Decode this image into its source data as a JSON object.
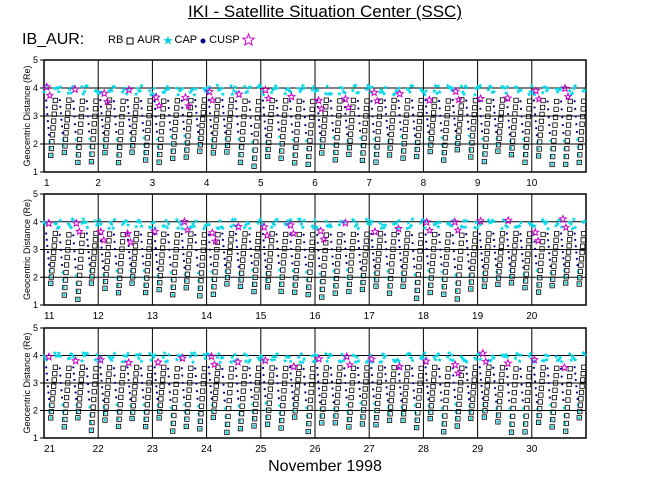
{
  "header": {
    "title": "IKI - Satellite Situation Center (SSC)",
    "satellite": "IB_AUR:",
    "legend": [
      {
        "label": "RB",
        "symbol": "square-icon",
        "color": "#000000"
      },
      {
        "label": "AUR",
        "symbol": "star-icon",
        "color": "#00d0e0"
      },
      {
        "label": "CAP",
        "symbol": "dot-icon",
        "color": "#00008b"
      },
      {
        "label": "CUSP",
        "symbol": "open-star-icon",
        "color": "#cc00cc"
      }
    ]
  },
  "footer": {
    "month_label": "November    1998"
  },
  "chart_data": [
    {
      "type": "scatter",
      "ylabel": "Geocentric Distance  (Re)",
      "ylim": [
        1,
        5
      ],
      "yticks": [
        "1",
        "2",
        "3",
        "4",
        "5"
      ],
      "xticks": [
        "1",
        "2",
        "3",
        "4",
        "5",
        "6",
        "7",
        "8",
        "9",
        "10"
      ],
      "x_unit": "day",
      "orbits_per_day": 4,
      "x_range": [
        1,
        11
      ],
      "series": [
        "RB",
        "AUR",
        "CAP",
        "CUSP"
      ]
    },
    {
      "type": "scatter",
      "ylabel": "Geocentric Distance  (Re)",
      "ylim": [
        1,
        5
      ],
      "yticks": [
        "1",
        "2",
        "3",
        "4",
        "5"
      ],
      "xticks": [
        "11",
        "12",
        "13",
        "14",
        "15",
        "16",
        "17",
        "18",
        "19",
        "20"
      ],
      "x_unit": "day",
      "orbits_per_day": 4,
      "x_range": [
        11,
        21
      ],
      "series": [
        "RB",
        "AUR",
        "CAP",
        "CUSP"
      ]
    },
    {
      "type": "scatter",
      "ylabel": "Geocentric Distance  (Re)",
      "ylim": [
        1,
        5
      ],
      "yticks": [
        "1",
        "2",
        "3",
        "4",
        "5"
      ],
      "xticks": [
        "21",
        "22",
        "23",
        "24",
        "25",
        "26",
        "27",
        "28",
        "29",
        "30"
      ],
      "x_unit": "day",
      "orbits_per_day": 4,
      "x_range": [
        21,
        31
      ],
      "series": [
        "RB",
        "AUR",
        "CAP",
        "CUSP"
      ]
    }
  ]
}
